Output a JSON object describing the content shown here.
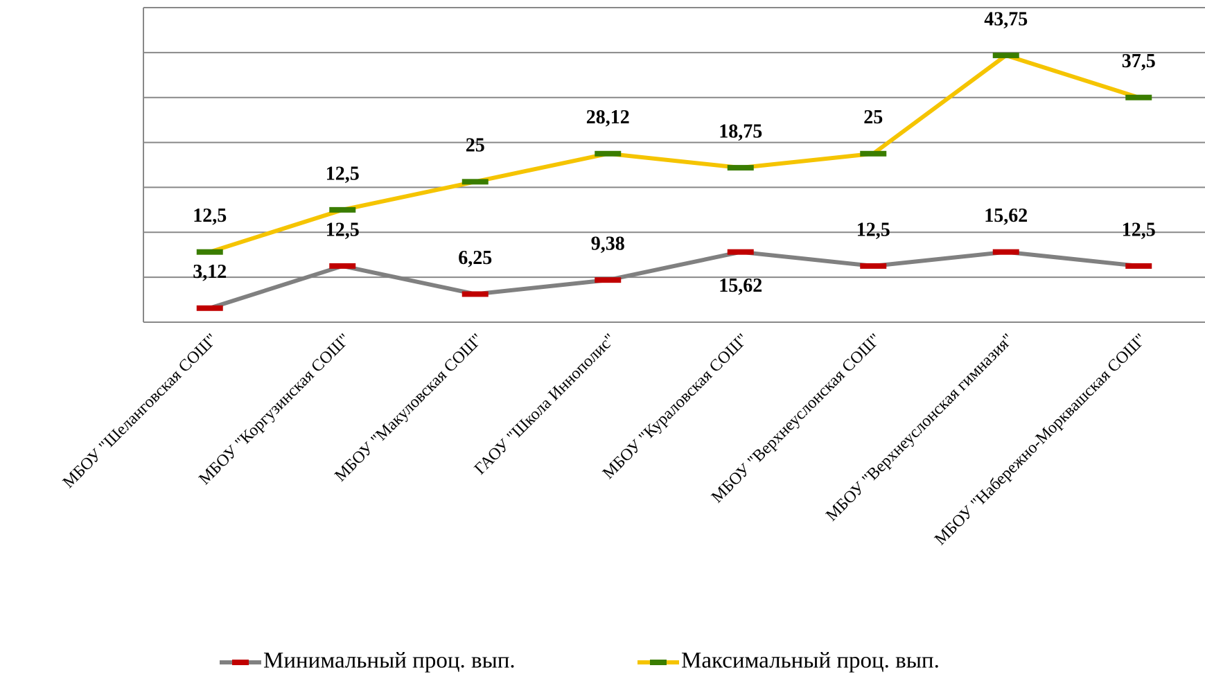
{
  "chart_data": {
    "type": "line",
    "stacked": true,
    "categories": [
      "МБОУ \"Шеланговская СОШ\"",
      "МБОУ \"Коргузинская СОШ\"",
      "МБОУ \"Макуловская СОШ\"",
      "ГАОУ \"Школа Иннополис\"",
      "МБОУ \"Кураловская СОШ\"",
      "МБОУ \"Верхнеуслонская СОШ\"",
      "МБОУ \"Верхнеуслонская гимназия\"",
      "МБОУ \"Набережно-Морквашская СОШ\""
    ],
    "series": [
      {
        "name": "Минимальный проц. вып.",
        "color": "#808080",
        "marker_color": "#c00000",
        "values": [
          3.12,
          12.5,
          6.25,
          9.38,
          15.62,
          12.5,
          15.62,
          12.5
        ],
        "value_labels": [
          "3,12",
          "12,5",
          "6,25",
          "9,38",
          "15,62",
          "12,5",
          "15,62",
          "12,5"
        ]
      },
      {
        "name": "Максимальный проц. вып.",
        "color": "#f5c400",
        "marker_color": "#3a7d00",
        "values": [
          12.5,
          12.5,
          25,
          28.12,
          18.75,
          25,
          43.75,
          37.5
        ],
        "value_labels": [
          "12,5",
          "12,5",
          "25",
          "28,12",
          "18,75",
          "25",
          "43,75",
          "37,5"
        ]
      }
    ],
    "ylim": [
      0,
      70
    ],
    "yticks": [
      0,
      10,
      20,
      30,
      40,
      50,
      60,
      70
    ],
    "grid": true,
    "legend": "bottom"
  }
}
